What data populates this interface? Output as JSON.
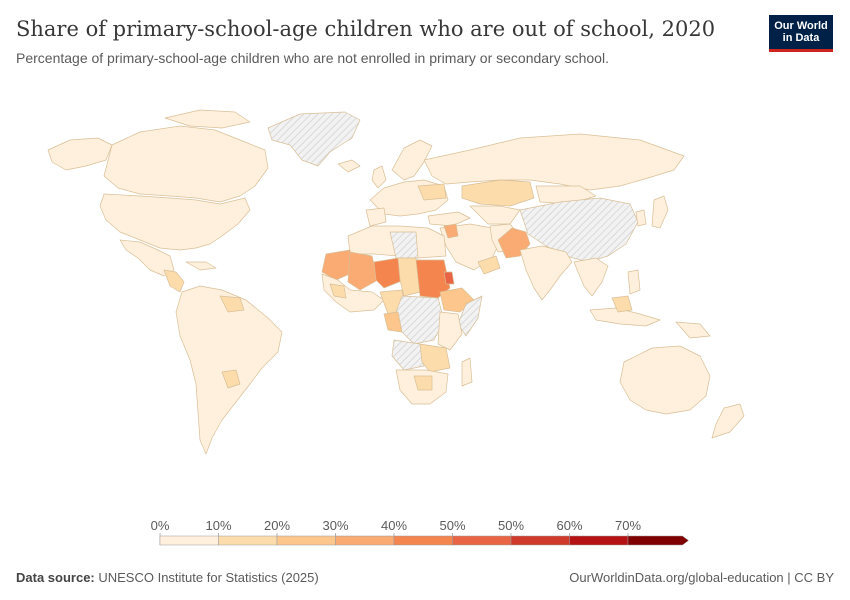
{
  "header": {
    "title": "Share of primary-school-age children who are out of school, 2020",
    "subtitle": "Percentage of primary-school-age children who are not enrolled in primary or secondary school."
  },
  "logo": {
    "line1": "Our World",
    "line2": "in Data"
  },
  "legend": {
    "ticks": [
      "0%",
      "10%",
      "20%",
      "30%",
      "40%",
      "50%",
      "50%",
      "60%",
      "70%"
    ],
    "bin_colors": [
      "#fef0dc",
      "#fddcac",
      "#fcc68c",
      "#f9ab73",
      "#f4854e",
      "#e86445",
      "#cf3a2a",
      "#b51214",
      "#7f0000"
    ]
  },
  "colors": {
    "no_data": "#e8e8e8",
    "border": "#c9a97d"
  },
  "footer": {
    "source_label": "Data source:",
    "source_text": " UNESCO Institute for Statistics (2025)",
    "url": "OurWorldinData.org/global-education | CC BY"
  }
}
